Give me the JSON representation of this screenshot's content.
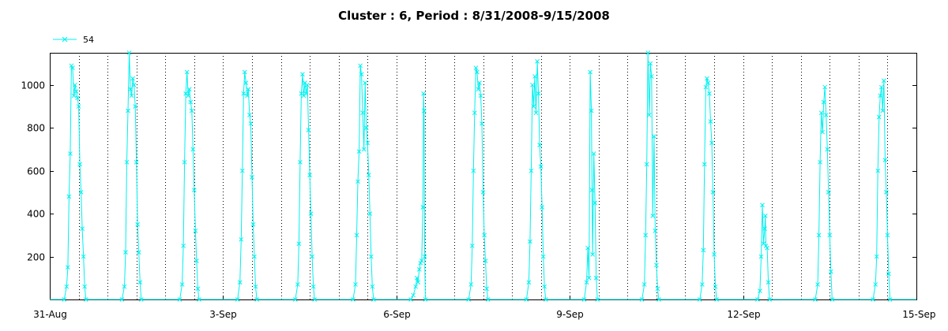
{
  "chart_data": {
    "type": "line",
    "title": "Cluster : 6, Period : 8/31/2008-9/15/2008",
    "xlabel": "",
    "ylabel": "",
    "x_range": [
      "2008-08-31T00:00",
      "2008-09-15T00:00"
    ],
    "ylim": [
      0,
      1150
    ],
    "y_ticks": [
      200,
      400,
      600,
      800,
      1000
    ],
    "x_ticks": [
      {
        "label": "31-Aug",
        "t": "2008-08-31T00:00"
      },
      {
        "label": "3-Sep",
        "t": "2008-09-03T00:00"
      },
      {
        "label": "6-Sep",
        "t": "2008-09-06T00:00"
      },
      {
        "label": "9-Sep",
        "t": "2008-09-09T00:00"
      },
      {
        "label": "12-Sep",
        "t": "2008-09-12T00:00"
      },
      {
        "label": "15-Sep",
        "t": "2008-09-15T00:00"
      }
    ],
    "grid": "vertical dotted lines at midnight and noon",
    "legend": {
      "position": "top-left"
    },
    "colors": {
      "series": "#00f0f0",
      "axis": "#000000",
      "grid": "#000000"
    },
    "series": [
      {
        "name": "54",
        "marker": "x",
        "days": [
          {
            "date": "2008-08-31",
            "points": [
              [
                "06:00",
                0
              ],
              [
                "07:00",
                60
              ],
              [
                "07:30",
                150
              ],
              [
                "08:00",
                480
              ],
              [
                "08:30",
                680
              ],
              [
                "09:00",
                1090
              ],
              [
                "09:30",
                1080
              ],
              [
                "10:00",
                950
              ],
              [
                "10:30",
                1000
              ],
              [
                "11:00",
                970
              ],
              [
                "11:30",
                940
              ],
              [
                "12:00",
                900
              ],
              [
                "12:30",
                630
              ],
              [
                "13:00",
                500
              ],
              [
                "13:30",
                330
              ],
              [
                "14:00",
                200
              ],
              [
                "14:30",
                60
              ],
              [
                "15:00",
                0
              ]
            ]
          },
          {
            "date": "2008-09-01",
            "points": [
              [
                "06:00",
                0
              ],
              [
                "07:00",
                60
              ],
              [
                "07:30",
                220
              ],
              [
                "08:00",
                640
              ],
              [
                "08:30",
                880
              ],
              [
                "09:00",
                1150
              ],
              [
                "09:30",
                980
              ],
              [
                "10:00",
                950
              ],
              [
                "10:30",
                1030
              ],
              [
                "11:00",
                1000
              ],
              [
                "11:30",
                900
              ],
              [
                "12:00",
                640
              ],
              [
                "12:30",
                350
              ],
              [
                "13:00",
                220
              ],
              [
                "13:30",
                80
              ],
              [
                "14:00",
                0
              ]
            ]
          },
          {
            "date": "2008-09-02",
            "points": [
              [
                "06:00",
                0
              ],
              [
                "07:00",
                70
              ],
              [
                "07:30",
                250
              ],
              [
                "08:00",
                640
              ],
              [
                "08:30",
                960
              ],
              [
                "09:00",
                1060
              ],
              [
                "09:30",
                950
              ],
              [
                "10:00",
                980
              ],
              [
                "10:30",
                920
              ],
              [
                "11:00",
                880
              ],
              [
                "11:30",
                700
              ],
              [
                "12:00",
                510
              ],
              [
                "12:30",
                320
              ],
              [
                "13:00",
                180
              ],
              [
                "13:30",
                50
              ],
              [
                "14:00",
                0
              ]
            ]
          },
          {
            "date": "2008-09-03",
            "points": [
              [
                "06:00",
                0
              ],
              [
                "07:00",
                80
              ],
              [
                "07:30",
                280
              ],
              [
                "08:00",
                600
              ],
              [
                "08:30",
                960
              ],
              [
                "09:00",
                1060
              ],
              [
                "09:30",
                1010
              ],
              [
                "10:00",
                950
              ],
              [
                "10:30",
                980
              ],
              [
                "11:00",
                860
              ],
              [
                "11:30",
                820
              ],
              [
                "12:00",
                570
              ],
              [
                "12:30",
                350
              ],
              [
                "13:00",
                200
              ],
              [
                "13:30",
                60
              ],
              [
                "14:00",
                0
              ]
            ]
          },
          {
            "date": "2008-09-04",
            "points": [
              [
                "06:00",
                0
              ],
              [
                "07:00",
                70
              ],
              [
                "07:30",
                260
              ],
              [
                "08:00",
                640
              ],
              [
                "08:30",
                960
              ],
              [
                "09:00",
                1050
              ],
              [
                "09:30",
                950
              ],
              [
                "10:00",
                1010
              ],
              [
                "10:30",
                960
              ],
              [
                "11:00",
                1000
              ],
              [
                "11:30",
                790
              ],
              [
                "12:00",
                580
              ],
              [
                "12:30",
                400
              ],
              [
                "13:00",
                200
              ],
              [
                "13:30",
                60
              ],
              [
                "14:00",
                0
              ]
            ]
          },
          {
            "date": "2008-09-05",
            "points": [
              [
                "06:00",
                0
              ],
              [
                "07:00",
                70
              ],
              [
                "07:30",
                300
              ],
              [
                "08:00",
                550
              ],
              [
                "08:30",
                690
              ],
              [
                "09:00",
                1090
              ],
              [
                "09:30",
                1050
              ],
              [
                "10:00",
                870
              ],
              [
                "10:30",
                700
              ],
              [
                "11:00",
                1010
              ],
              [
                "11:30",
                800
              ],
              [
                "12:00",
                730
              ],
              [
                "12:30",
                580
              ],
              [
                "13:00",
                400
              ],
              [
                "13:30",
                200
              ],
              [
                "14:00",
                60
              ],
              [
                "14:30",
                0
              ]
            ]
          },
          {
            "date": "2008-09-06",
            "points": [
              [
                "06:00",
                0
              ],
              [
                "07:00",
                20
              ],
              [
                "08:00",
                60
              ],
              [
                "08:30",
                100
              ],
              [
                "09:00",
                80
              ],
              [
                "09:30",
                140
              ],
              [
                "10:00",
                170
              ],
              [
                "10:30",
                180
              ],
              [
                "11:00",
                430
              ],
              [
                "11:15",
                960
              ],
              [
                "11:30",
                880
              ],
              [
                "11:45",
                200
              ],
              [
                "12:00",
                0
              ]
            ]
          },
          {
            "date": "2008-09-07",
            "points": [
              [
                "06:00",
                0
              ],
              [
                "07:00",
                70
              ],
              [
                "07:30",
                250
              ],
              [
                "08:00",
                600
              ],
              [
                "08:30",
                870
              ],
              [
                "09:00",
                1080
              ],
              [
                "09:30",
                1060
              ],
              [
                "10:00",
                980
              ],
              [
                "10:30",
                1010
              ],
              [
                "11:00",
                950
              ],
              [
                "11:30",
                820
              ],
              [
                "12:00",
                500
              ],
              [
                "12:30",
                300
              ],
              [
                "13:00",
                180
              ],
              [
                "13:30",
                50
              ],
              [
                "14:00",
                0
              ]
            ]
          },
          {
            "date": "2008-09-08",
            "points": [
              [
                "06:00",
                0
              ],
              [
                "07:00",
                80
              ],
              [
                "07:30",
                270
              ],
              [
                "08:00",
                600
              ],
              [
                "08:30",
                1000
              ],
              [
                "09:00",
                900
              ],
              [
                "09:30",
                1040
              ],
              [
                "10:00",
                870
              ],
              [
                "10:30",
                1110
              ],
              [
                "11:00",
                960
              ],
              [
                "11:30",
                720
              ],
              [
                "12:00",
                620
              ],
              [
                "12:30",
                430
              ],
              [
                "13:00",
                200
              ],
              [
                "13:30",
                60
              ],
              [
                "14:00",
                0
              ]
            ]
          },
          {
            "date": "2008-09-09",
            "points": [
              [
                "06:00",
                0
              ],
              [
                "07:00",
                80
              ],
              [
                "07:30",
                240
              ],
              [
                "08:00",
                100
              ],
              [
                "08:30",
                1060
              ],
              [
                "09:00",
                880
              ],
              [
                "09:15",
                510
              ],
              [
                "09:30",
                210
              ],
              [
                "10:00",
                680
              ],
              [
                "10:30",
                450
              ],
              [
                "11:00",
                100
              ],
              [
                "11:30",
                0
              ]
            ]
          },
          {
            "date": "2008-09-10",
            "points": [
              [
                "06:00",
                0
              ],
              [
                "07:00",
                70
              ],
              [
                "07:30",
                300
              ],
              [
                "08:00",
                630
              ],
              [
                "08:30",
                1150
              ],
              [
                "09:00",
                860
              ],
              [
                "09:30",
                1100
              ],
              [
                "10:00",
                1040
              ],
              [
                "10:30",
                390
              ],
              [
                "11:00",
                760
              ],
              [
                "11:30",
                320
              ],
              [
                "12:00",
                160
              ],
              [
                "12:30",
                50
              ],
              [
                "13:00",
                0
              ]
            ]
          },
          {
            "date": "2008-09-11",
            "points": [
              [
                "06:00",
                0
              ],
              [
                "07:00",
                70
              ],
              [
                "07:30",
                230
              ],
              [
                "08:00",
                630
              ],
              [
                "08:30",
                990
              ],
              [
                "09:00",
                1030
              ],
              [
                "09:30",
                1010
              ],
              [
                "10:00",
                960
              ],
              [
                "10:30",
                830
              ],
              [
                "11:00",
                730
              ],
              [
                "11:30",
                500
              ],
              [
                "12:00",
                210
              ],
              [
                "12:30",
                60
              ],
              [
                "13:00",
                0
              ]
            ]
          },
          {
            "date": "2008-09-12",
            "points": [
              [
                "06:00",
                0
              ],
              [
                "07:00",
                40
              ],
              [
                "07:30",
                200
              ],
              [
                "08:00",
                440
              ],
              [
                "08:30",
                260
              ],
              [
                "09:00",
                330
              ],
              [
                "09:15",
                390
              ],
              [
                "09:30",
                250
              ],
              [
                "10:00",
                240
              ],
              [
                "10:30",
                80
              ],
              [
                "11:00",
                0
              ]
            ]
          },
          {
            "date": "2008-09-13",
            "points": [
              [
                "06:00",
                0
              ],
              [
                "07:00",
                70
              ],
              [
                "07:30",
                300
              ],
              [
                "08:00",
                640
              ],
              [
                "08:30",
                870
              ],
              [
                "09:00",
                780
              ],
              [
                "09:30",
                920
              ],
              [
                "10:00",
                990
              ],
              [
                "10:30",
                860
              ],
              [
                "11:00",
                700
              ],
              [
                "11:30",
                500
              ],
              [
                "12:00",
                300
              ],
              [
                "12:30",
                130
              ],
              [
                "13:00",
                0
              ]
            ]
          },
          {
            "date": "2008-09-14",
            "points": [
              [
                "06:00",
                0
              ],
              [
                "07:00",
                70
              ],
              [
                "07:30",
                200
              ],
              [
                "08:00",
                600
              ],
              [
                "08:30",
                850
              ],
              [
                "09:00",
                950
              ],
              [
                "09:30",
                990
              ],
              [
                "10:00",
                880
              ],
              [
                "10:30",
                1020
              ],
              [
                "11:00",
                650
              ],
              [
                "11:30",
                500
              ],
              [
                "12:00",
                300
              ],
              [
                "12:30",
                120
              ],
              [
                "13:00",
                0
              ]
            ]
          }
        ]
      }
    ]
  }
}
